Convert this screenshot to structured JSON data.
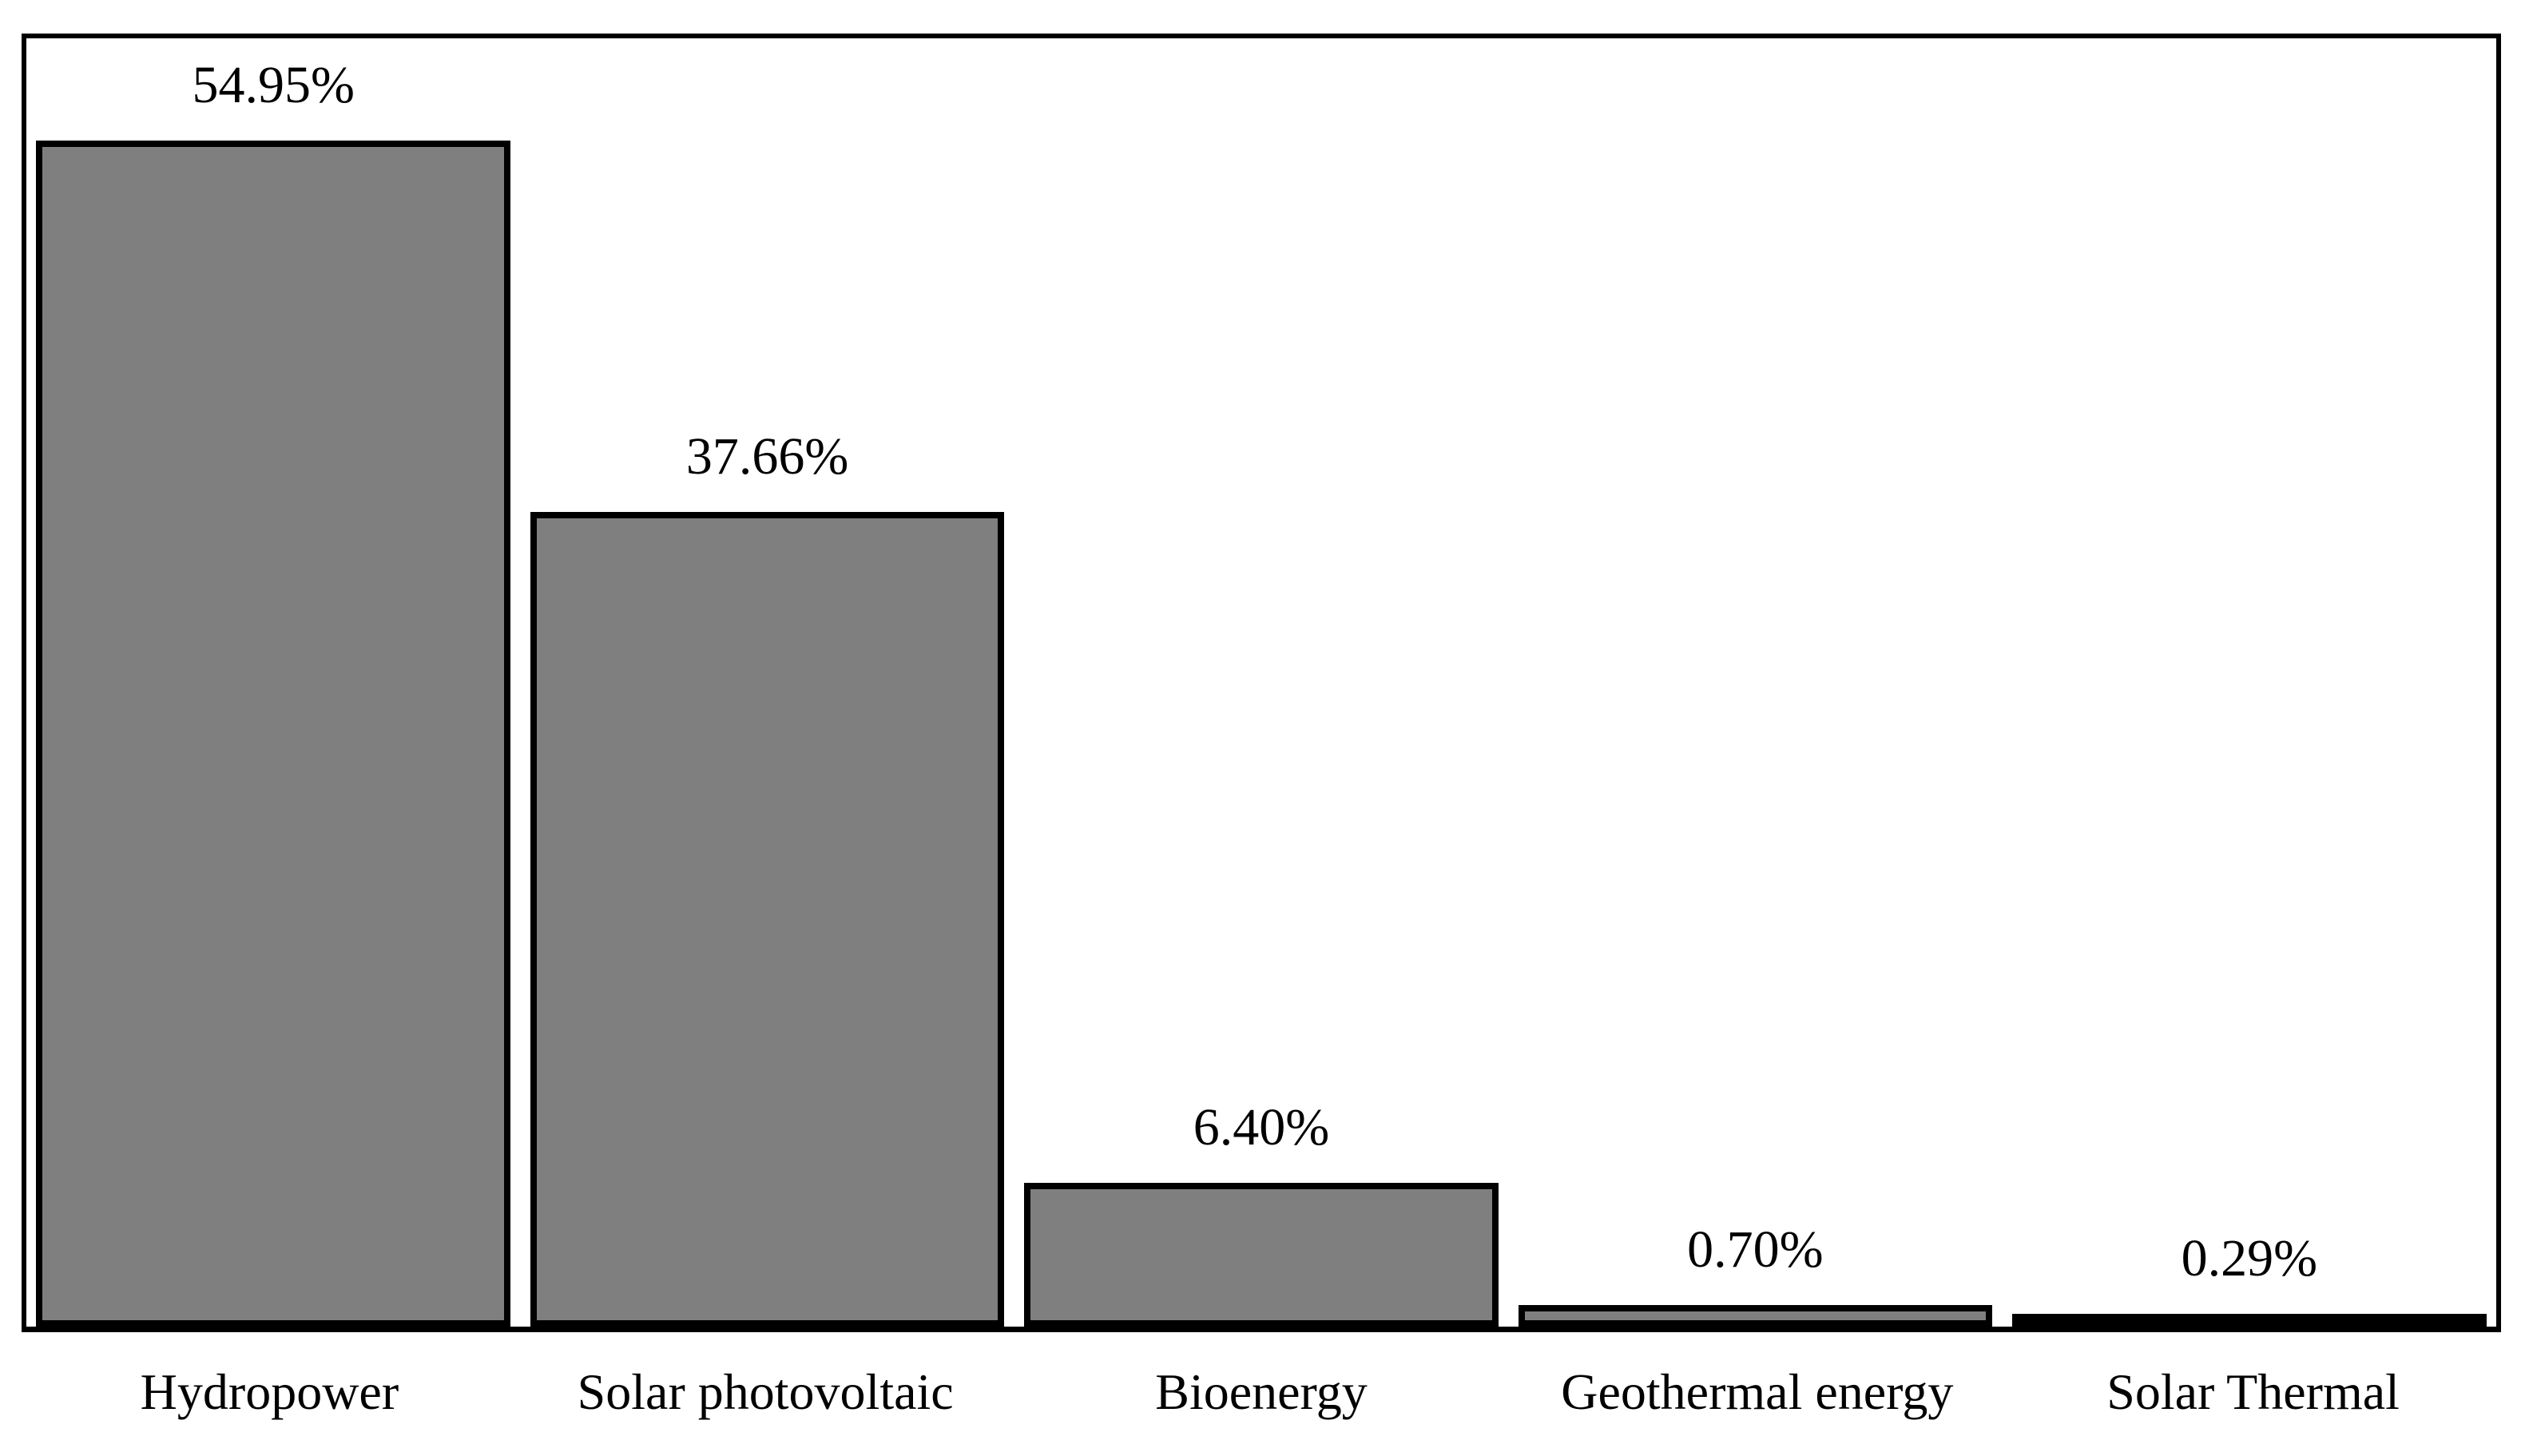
{
  "chart_data": {
    "type": "bar",
    "categories": [
      "Hydropower",
      "Solar photovoltaic",
      "Bioenergy",
      "Geothermal energy",
      "Solar Thermal"
    ],
    "values": [
      54.95,
      37.66,
      6.4,
      0.7,
      0.29
    ],
    "value_labels": [
      "54.95%",
      "37.66%",
      "6.40%",
      "0.70%",
      "0.29%"
    ],
    "title": "",
    "xlabel": "",
    "ylabel": "",
    "ylim": [
      0,
      60
    ],
    "grid": false,
    "legend": false,
    "data_label_position": "above-bar",
    "colors": {
      "bar_fill": "#7f7f7f",
      "bar_border": "#000000",
      "plot_border": "#000000",
      "background": "#ffffff",
      "text": "#000000"
    }
  }
}
